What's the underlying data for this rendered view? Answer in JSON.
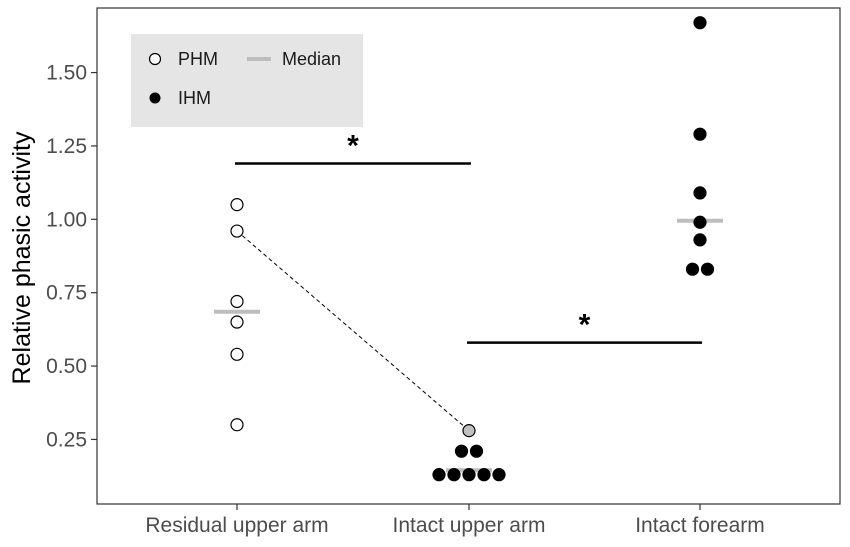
{
  "chart_data": {
    "type": "scatter",
    "ylabel": "Relative phasic activity",
    "xlabel": "",
    "categories": [
      "Residual upper arm",
      "Intact upper arm",
      "Intact forearm"
    ],
    "yticks": [
      0.25,
      0.5,
      0.75,
      1.0,
      1.25,
      1.5
    ],
    "ytick_labels": [
      "0.25",
      "0.50",
      "0.75",
      "1.00",
      "1.25",
      "1.50"
    ],
    "ylim": [
      0.03,
      1.72
    ],
    "grid": false,
    "legend": {
      "position": "top-left",
      "items": [
        {
          "label": "PHM",
          "kind": "open-circle"
        },
        {
          "label": "Median",
          "kind": "gray-bar"
        },
        {
          "label": "IHM",
          "kind": "filled-circle"
        }
      ]
    },
    "series": [
      {
        "name": "PHM",
        "style": "open",
        "points": [
          {
            "category": 0,
            "y": 1.05,
            "offset": 0
          },
          {
            "category": 0,
            "y": 0.96,
            "offset": 0
          },
          {
            "category": 0,
            "y": 0.72,
            "offset": 0
          },
          {
            "category": 0,
            "y": 0.65,
            "offset": 0
          },
          {
            "category": 0,
            "y": 0.54,
            "offset": 0
          },
          {
            "category": 0,
            "y": 0.3,
            "offset": 0
          },
          {
            "category": 1,
            "y": 0.28,
            "offset": 0,
            "style": "gray"
          }
        ]
      },
      {
        "name": "IHM",
        "style": "filled",
        "points": [
          {
            "category": 1,
            "y": 0.21,
            "offset": -0.5
          },
          {
            "category": 1,
            "y": 0.21,
            "offset": 0.5
          },
          {
            "category": 1,
            "y": 0.13,
            "offset": -2
          },
          {
            "category": 1,
            "y": 0.13,
            "offset": -1
          },
          {
            "category": 1,
            "y": 0.13,
            "offset": 0
          },
          {
            "category": 1,
            "y": 0.13,
            "offset": 1
          },
          {
            "category": 1,
            "y": 0.13,
            "offset": 2
          },
          {
            "category": 2,
            "y": 1.67,
            "offset": 0
          },
          {
            "category": 2,
            "y": 1.29,
            "offset": 0
          },
          {
            "category": 2,
            "y": 1.09,
            "offset": 0
          },
          {
            "category": 2,
            "y": 0.99,
            "offset": 0
          },
          {
            "category": 2,
            "y": 0.93,
            "offset": 0
          },
          {
            "category": 2,
            "y": 0.83,
            "offset": -0.5
          },
          {
            "category": 2,
            "y": 0.83,
            "offset": 0.5
          }
        ]
      }
    ],
    "medians": [
      {
        "category": 0,
        "y": 0.685
      },
      {
        "category": 1,
        "y": 0.145
      },
      {
        "category": 2,
        "y": 0.995
      }
    ],
    "connector": {
      "from": {
        "category": 0,
        "y": 0.96
      },
      "to": {
        "category": 1,
        "y": 0.28
      },
      "style": "dashed"
    },
    "significance": [
      {
        "from": 0,
        "to": 1,
        "y": 1.19,
        "label": "*"
      },
      {
        "from": 1,
        "to": 2,
        "y": 0.58,
        "label": "*"
      }
    ],
    "colors": {
      "open_fill": "#ffffff",
      "filled": "#000000",
      "gray_point": "#c0c0c0",
      "median": "#bdbdbd",
      "legend_bg": "#e5e5e5"
    }
  }
}
